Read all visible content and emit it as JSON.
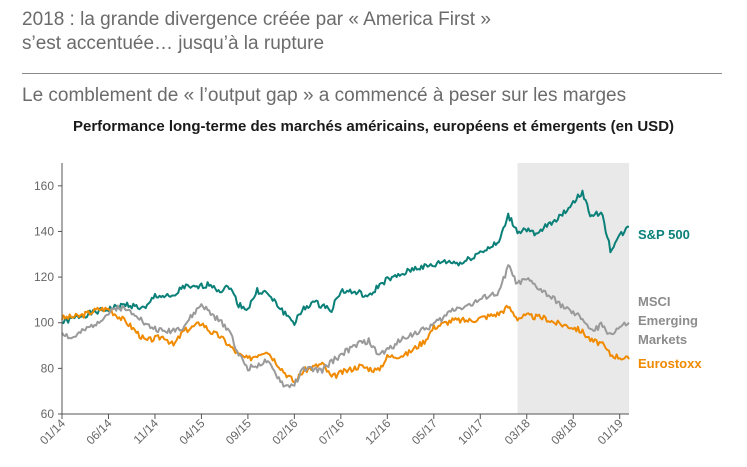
{
  "header": {
    "headline_line1": "2018 : la grande divergence créée par « America First »",
    "headline_line2": "s’est accentuée… jusqu’à la rupture",
    "subtitle": "Le comblement de « l’output gap » a commencé à peser sur les marges"
  },
  "chart_data": {
    "type": "line",
    "title": "Performance long-terme des marchés américains, européens et émergents (en USD)",
    "xlabel": "",
    "ylabel": "",
    "ylim": [
      60,
      170
    ],
    "yticks": [
      60,
      80,
      100,
      120,
      140,
      160
    ],
    "xlim": [
      "2014-01",
      "2019-02"
    ],
    "xticks": [
      "01/14",
      "06/14",
      "11/14",
      "04/15",
      "09/15",
      "02/16",
      "07/16",
      "12/16",
      "05/17",
      "10/17",
      "03/18",
      "08/18",
      "01/19"
    ],
    "grid": false,
    "legend": "right-inline",
    "shaded_period": [
      "2018-02",
      "2019-02"
    ],
    "series": [
      {
        "name": "S&P 500",
        "color": "#0a8078",
        "x": [
          "2014-01",
          "2014-03",
          "2014-05",
          "2014-06",
          "2014-08",
          "2014-09",
          "2014-10",
          "2014-11",
          "2015-01",
          "2015-02",
          "2015-03",
          "2015-05",
          "2015-06",
          "2015-07",
          "2015-08",
          "2015-09",
          "2015-10",
          "2015-11",
          "2016-01",
          "2016-02",
          "2016-03",
          "2016-04",
          "2016-06",
          "2016-07",
          "2016-09",
          "2016-10",
          "2016-11",
          "2016-12",
          "2017-01",
          "2017-03",
          "2017-05",
          "2017-06",
          "2017-08",
          "2017-10",
          "2017-11",
          "2017-12",
          "2018-01",
          "2018-02",
          "2018-03",
          "2018-04",
          "2018-05",
          "2018-06",
          "2018-07",
          "2018-08",
          "2018-09",
          "2018-10",
          "2018-11",
          "2018-12",
          "2019-01",
          "2019-02"
        ],
        "values": [
          100,
          103,
          105,
          106,
          108,
          107,
          106,
          112,
          111,
          116,
          115,
          117,
          114,
          116,
          108,
          106,
          114,
          113,
          104,
          100,
          106,
          109,
          106,
          114,
          113,
          111,
          116,
          119,
          120,
          124,
          125,
          127,
          126,
          131,
          133,
          135,
          147,
          140,
          141,
          138,
          142,
          145,
          148,
          153,
          157,
          146,
          149,
          132,
          138,
          142
        ]
      },
      {
        "name": "MSCI Emerging Markets",
        "color": "#9a9a9a",
        "x": [
          "2014-01",
          "2014-02",
          "2014-04",
          "2014-06",
          "2014-07",
          "2014-09",
          "2014-10",
          "2014-12",
          "2015-02",
          "2015-04",
          "2015-05",
          "2015-07",
          "2015-08",
          "2015-09",
          "2015-11",
          "2016-01",
          "2016-02",
          "2016-03",
          "2016-05",
          "2016-06",
          "2016-07",
          "2016-09",
          "2016-10",
          "2016-11",
          "2016-12",
          "2017-02",
          "2017-04",
          "2017-06",
          "2017-07",
          "2017-09",
          "2017-11",
          "2017-12",
          "2018-01",
          "2018-02",
          "2018-03",
          "2018-04",
          "2018-05",
          "2018-06",
          "2018-08",
          "2018-09",
          "2018-10",
          "2018-11",
          "2018-12",
          "2019-01",
          "2019-02"
        ],
        "values": [
          96,
          93,
          98,
          104,
          107,
          104,
          99,
          96,
          98,
          108,
          104,
          97,
          86,
          80,
          83,
          72,
          73,
          80,
          79,
          83,
          86,
          91,
          92,
          86,
          88,
          94,
          97,
          102,
          106,
          108,
          112,
          113,
          125,
          117,
          119,
          116,
          113,
          110,
          104,
          102,
          96,
          99,
          95,
          98,
          100
        ]
      },
      {
        "name": "Eurostoxx",
        "color": "#f08a00",
        "x": [
          "2014-01",
          "2014-03",
          "2014-05",
          "2014-06",
          "2014-08",
          "2014-10",
          "2014-12",
          "2015-01",
          "2015-02",
          "2015-04",
          "2015-05",
          "2015-06",
          "2015-08",
          "2015-09",
          "2015-11",
          "2016-01",
          "2016-02",
          "2016-03",
          "2016-05",
          "2016-06",
          "2016-07",
          "2016-09",
          "2016-11",
          "2016-12",
          "2017-02",
          "2017-04",
          "2017-05",
          "2017-07",
          "2017-09",
          "2017-11",
          "2017-12",
          "2018-01",
          "2018-02",
          "2018-03",
          "2018-05",
          "2018-06",
          "2018-08",
          "2018-09",
          "2018-10",
          "2018-11",
          "2018-12",
          "2019-01",
          "2019-02"
        ],
        "values": [
          102,
          103,
          106,
          106,
          100,
          92,
          94,
          90,
          96,
          100,
          96,
          94,
          86,
          84,
          88,
          78,
          74,
          79,
          82,
          76,
          78,
          81,
          79,
          85,
          86,
          92,
          98,
          101,
          101,
          103,
          104,
          107,
          102,
          103,
          102,
          100,
          98,
          96,
          92,
          91,
          86,
          85,
          84
        ]
      }
    ],
    "series_labels": {
      "sp500": "S&P 500",
      "msci_line1": "MSCI",
      "msci_line2": "Emerging",
      "msci_line3": "Markets",
      "eurostoxx": "Eurostoxx"
    }
  }
}
